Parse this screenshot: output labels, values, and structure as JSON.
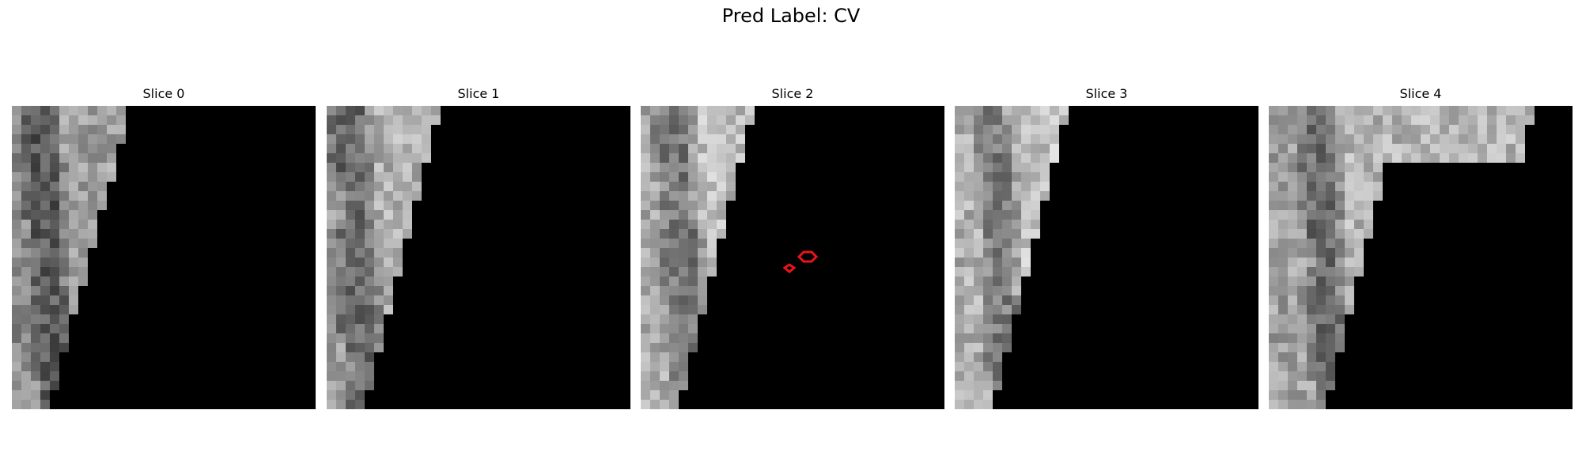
{
  "figure": {
    "suptitle": "Pred Label: CV"
  },
  "panels": [
    {
      "title": "Slice 0",
      "has_mask_contour": false
    },
    {
      "title": "Slice 1",
      "has_mask_contour": false
    },
    {
      "title": "Slice 2",
      "has_mask_contour": true
    },
    {
      "title": "Slice 3",
      "has_mask_contour": false
    },
    {
      "title": "Slice 4",
      "has_mask_contour": false
    }
  ],
  "colors": {
    "background": "#ffffff",
    "mask_contour": "#e8141c",
    "outside_region": "#000000"
  },
  "colormap": "gray"
}
